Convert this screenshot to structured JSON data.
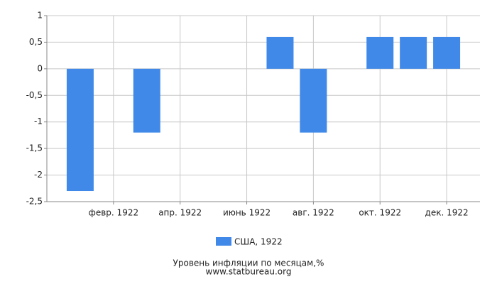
{
  "chart_data": {
    "type": "bar",
    "title": "Уровень инфляции по месяцам,%",
    "subtitle": "www.statbureau.org",
    "categories": [
      null,
      "февр. 1922",
      null,
      "апр. 1922",
      null,
      "июнь 1922",
      null,
      "авг. 1922",
      null,
      "окт. 1922",
      null,
      "дек. 1922"
    ],
    "series": [
      {
        "name": "США, 1922",
        "color": "#4189e8",
        "values": [
          -2.3,
          0,
          -1.2,
          0,
          0,
          0,
          0.6,
          -1.2,
          0,
          0.6,
          0.6,
          0.6
        ]
      }
    ],
    "ylim": [
      -2.5,
      1
    ],
    "yticks": [
      {
        "value": -2.5,
        "label": "-2,5"
      },
      -2,
      {
        "value": -1.5,
        "label": "-1,5"
      },
      -1,
      {
        "value": -0.5,
        "label": "-0,5"
      },
      0,
      {
        "value": 0.5,
        "label": "0,5"
      },
      1
    ],
    "grid": true
  }
}
